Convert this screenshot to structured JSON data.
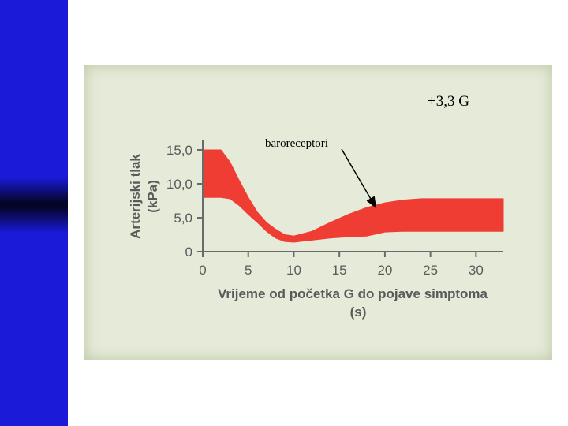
{
  "chart_data": {
    "type": "area",
    "title": "",
    "xlabel": "Vrijeme od početka G do pojave simptoma",
    "xlabel_unit": "(s)",
    "ylabel": "Arterijski tlak",
    "ylabel_unit": "(kPa)",
    "xlim": [
      0,
      33
    ],
    "ylim": [
      0,
      17
    ],
    "x_ticks": [
      0,
      5,
      10,
      15,
      20,
      25,
      30
    ],
    "x_tick_labels": [
      "0",
      "5",
      "10",
      "15",
      "20",
      "25",
      "30"
    ],
    "y_ticks": [
      0,
      5,
      10,
      15
    ],
    "y_tick_labels": [
      "0",
      "5,0",
      "10,0",
      "15,0"
    ],
    "grid": false,
    "band_color": "#ef3d34",
    "series": [
      {
        "x": [
          0,
          2,
          3,
          4,
          5,
          6,
          7,
          8,
          9,
          10,
          12,
          14,
          16,
          18,
          20,
          22,
          24,
          26,
          28,
          30,
          33
        ],
        "upper": [
          15.0,
          15.0,
          13.2,
          10.5,
          8.0,
          5.8,
          4.3,
          3.3,
          2.5,
          2.3,
          3.0,
          4.3,
          5.5,
          6.5,
          7.2,
          7.6,
          7.8,
          7.8,
          7.8,
          7.8,
          7.8
        ],
        "lower": [
          8.0,
          8.0,
          7.8,
          6.8,
          5.5,
          4.3,
          3.0,
          2.0,
          1.5,
          1.4,
          1.7,
          2.0,
          2.2,
          2.3,
          2.9,
          3.0,
          3.0,
          3.0,
          3.0,
          3.0,
          3.0
        ]
      }
    ],
    "annotations": [
      {
        "text": "+3,3 G"
      },
      {
        "text": "baroreceptori",
        "arrow_to": {
          "x": 19,
          "y": 6.5
        }
      }
    ]
  }
}
